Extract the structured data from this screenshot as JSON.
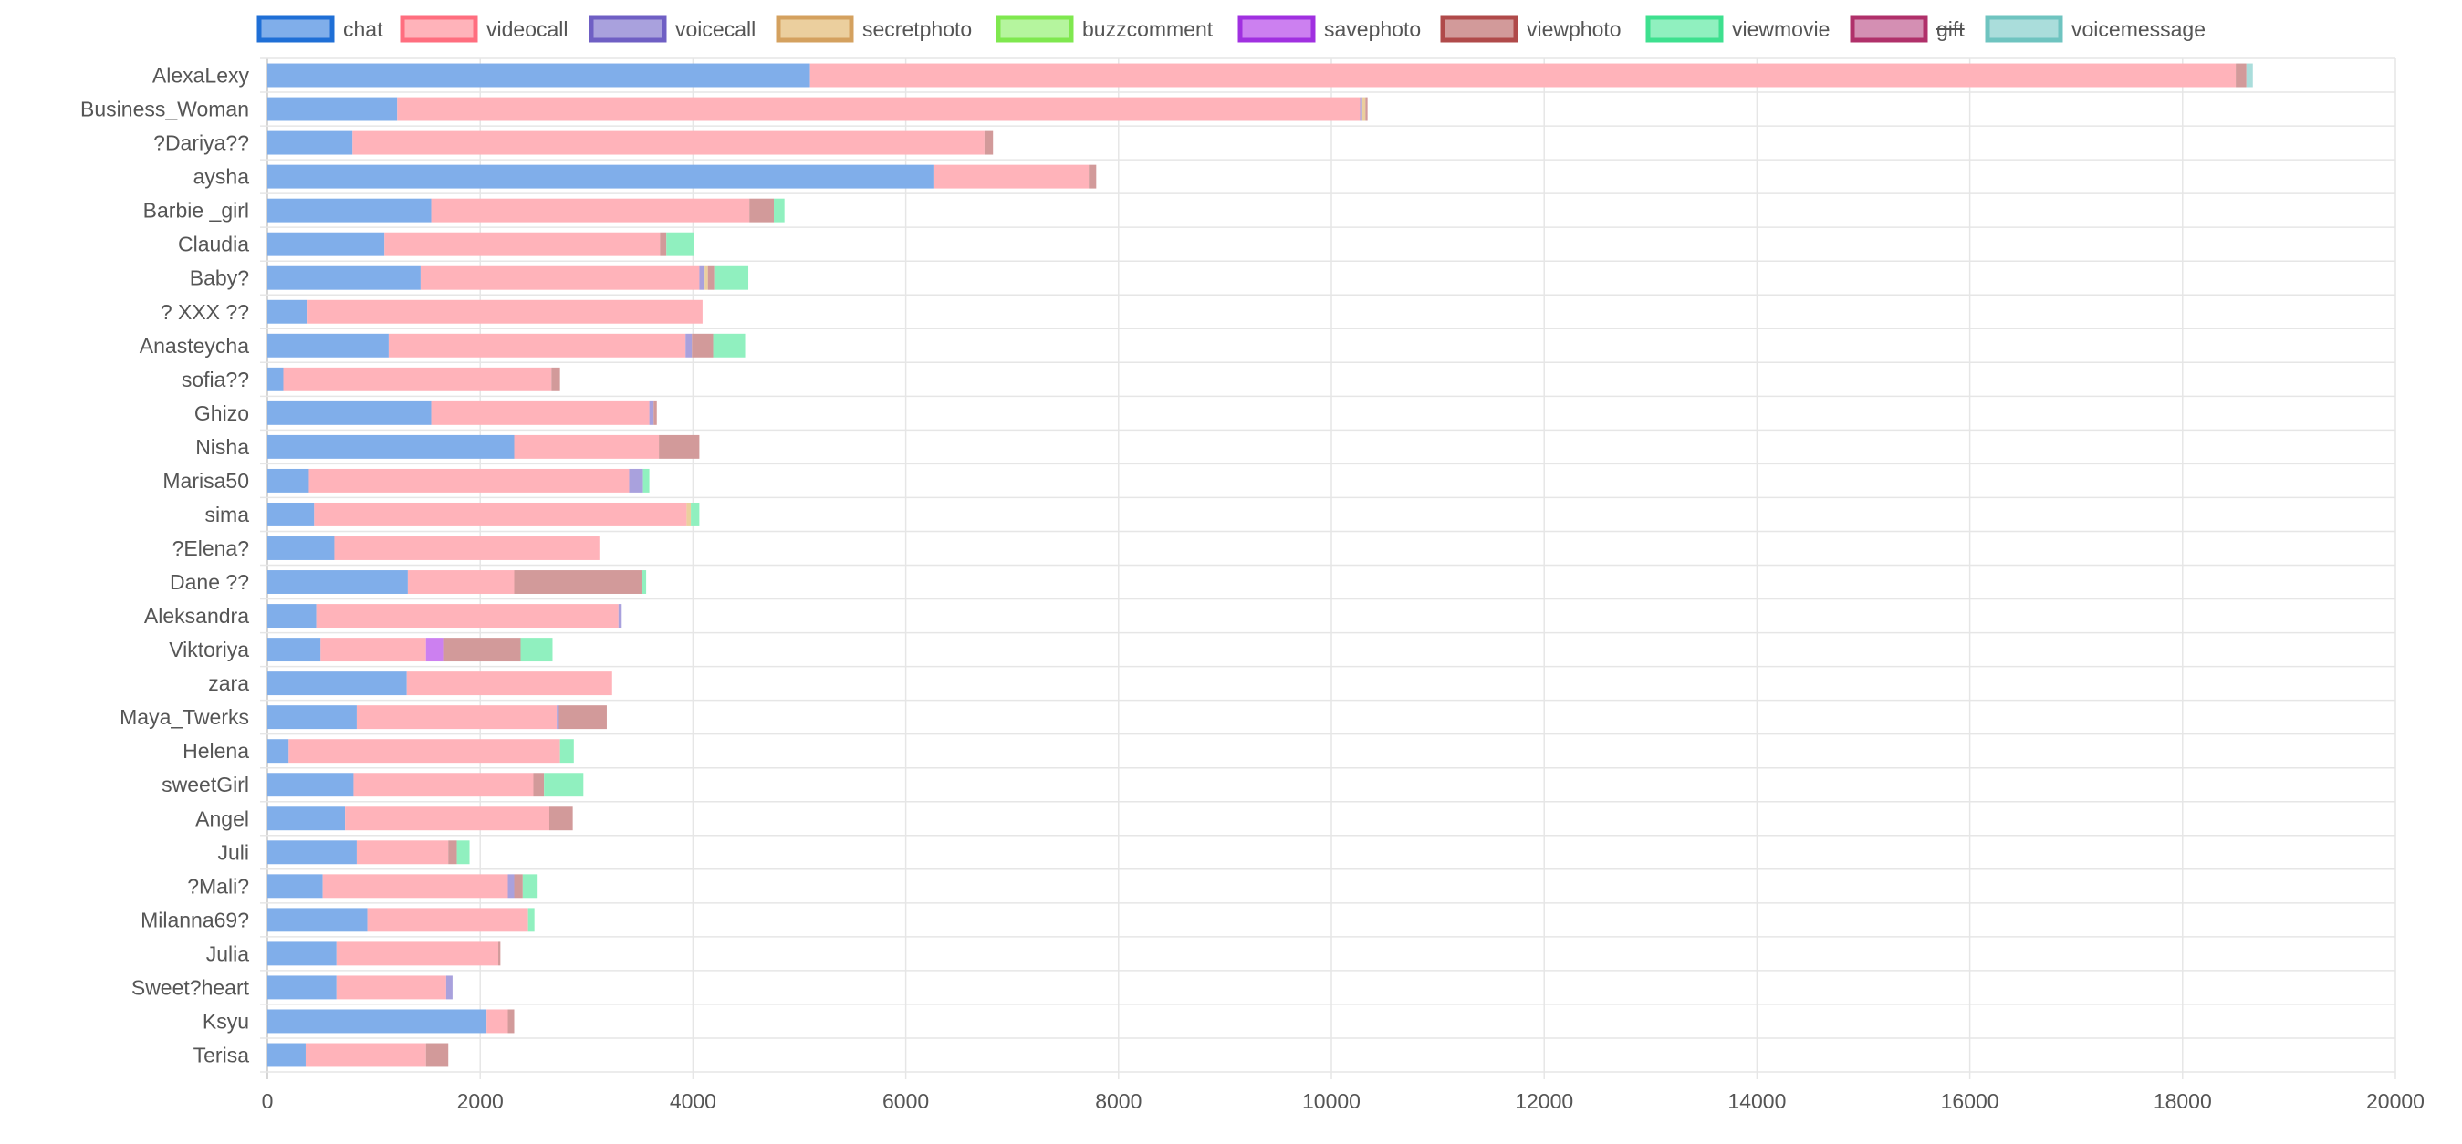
{
  "chart_data": {
    "type": "bar",
    "orientation": "horizontal",
    "stacked": true,
    "title": "",
    "xlabel": "",
    "ylabel": "",
    "xlim": [
      0,
      20000
    ],
    "x_ticks": [
      0,
      2000,
      4000,
      6000,
      8000,
      10000,
      12000,
      14000,
      16000,
      18000,
      20000
    ],
    "grid": true,
    "legend_position": "top",
    "categories": [
      "AlexaLexy",
      "Business_Woman",
      "?Dariya??",
      "aysha",
      "Barbie _girl",
      "Claudia",
      "Baby?",
      "? XXX ??",
      "Anasteycha",
      "sofia??",
      "Ghizo",
      "Nisha",
      "Marisa50",
      "sima",
      "?Elena?",
      "Dane ??",
      "Aleksandra",
      "Viktoriya",
      "zara",
      "Maya_Twerks",
      "Helena",
      "sweetGirl",
      "Angel",
      "Juli",
      "?Mali?",
      "Milanna69?",
      "Julia",
      "Sweet?heart",
      "Ksyu",
      "Terisa"
    ],
    "series": [
      {
        "name": "chat",
        "border": "#1f6fd6",
        "fill": "#80aeea",
        "hidden": false,
        "values": [
          5100,
          1220,
          800,
          6260,
          1540,
          1100,
          1440,
          370,
          1140,
          150,
          1540,
          2320,
          390,
          440,
          630,
          1320,
          460,
          500,
          1310,
          840,
          200,
          810,
          730,
          840,
          520,
          940,
          650,
          650,
          2060,
          360
        ]
      },
      {
        "name": "videocall",
        "border": "#ff6e7f",
        "fill": "#ffb3ba",
        "hidden": false,
        "values": [
          13400,
          9050,
          5940,
          1460,
          2990,
          2590,
          2620,
          3720,
          2790,
          2520,
          2050,
          1360,
          3010,
          3500,
          2490,
          1000,
          2840,
          990,
          1930,
          1880,
          2550,
          1690,
          1920,
          860,
          1740,
          1510,
          1520,
          1030,
          200,
          1130
        ]
      },
      {
        "name": "voicecall",
        "border": "#6f5fc4",
        "fill": "#a9a1dd",
        "hidden": false,
        "values": [
          0,
          20,
          0,
          0,
          0,
          0,
          50,
          0,
          60,
          0,
          40,
          0,
          130,
          0,
          0,
          0,
          30,
          0,
          0,
          20,
          0,
          0,
          0,
          0,
          60,
          0,
          0,
          60,
          0,
          0
        ]
      },
      {
        "name": "secretphoto",
        "border": "#d4a15f",
        "fill": "#ebcf9e",
        "hidden": false,
        "values": [
          0,
          30,
          0,
          0,
          0,
          0,
          30,
          0,
          0,
          0,
          0,
          0,
          0,
          40,
          0,
          0,
          0,
          0,
          0,
          0,
          0,
          0,
          0,
          0,
          0,
          0,
          0,
          0,
          0,
          0
        ]
      },
      {
        "name": "buzzcomment",
        "border": "#7fe84f",
        "fill": "#b5f59e",
        "hidden": false,
        "values": [
          0,
          0,
          0,
          0,
          0,
          0,
          0,
          0,
          0,
          0,
          0,
          0,
          0,
          0,
          0,
          0,
          0,
          0,
          0,
          0,
          0,
          0,
          0,
          0,
          0,
          0,
          0,
          0,
          0,
          0
        ]
      },
      {
        "name": "savephoto",
        "border": "#a030e0",
        "fill": "#cc80f0",
        "hidden": false,
        "values": [
          0,
          0,
          0,
          0,
          0,
          0,
          0,
          0,
          0,
          0,
          0,
          0,
          0,
          0,
          0,
          0,
          0,
          170,
          0,
          0,
          0,
          0,
          0,
          0,
          0,
          0,
          0,
          0,
          0,
          0
        ]
      },
      {
        "name": "viewphoto",
        "border": "#b04a4a",
        "fill": "#d29a9a",
        "hidden": false,
        "values": [
          100,
          20,
          80,
          70,
          230,
          60,
          60,
          0,
          200,
          80,
          30,
          380,
          0,
          0,
          0,
          1200,
          0,
          720,
          0,
          450,
          0,
          100,
          220,
          80,
          80,
          0,
          20,
          0,
          60,
          210
        ]
      },
      {
        "name": "viewmovie",
        "border": "#3ee08f",
        "fill": "#90f0bf",
        "hidden": false,
        "values": [
          0,
          0,
          0,
          0,
          100,
          260,
          320,
          0,
          300,
          0,
          0,
          0,
          60,
          80,
          0,
          40,
          0,
          300,
          0,
          0,
          130,
          370,
          0,
          120,
          140,
          60,
          0,
          0,
          0,
          0
        ]
      },
      {
        "name": "gift",
        "border": "#b0306a",
        "fill": "#d48fb3",
        "hidden": true,
        "values": [
          0,
          0,
          0,
          0,
          0,
          0,
          0,
          0,
          0,
          0,
          0,
          0,
          0,
          0,
          0,
          0,
          0,
          0,
          0,
          0,
          0,
          0,
          0,
          0,
          0,
          0,
          0,
          0,
          0,
          0
        ]
      },
      {
        "name": "voicemessage",
        "border": "#6fc4c0",
        "fill": "#aadddb",
        "hidden": false,
        "values": [
          60,
          0,
          0,
          0,
          0,
          0,
          0,
          0,
          0,
          0,
          0,
          0,
          0,
          0,
          0,
          0,
          0,
          0,
          0,
          0,
          0,
          0,
          0,
          0,
          0,
          0,
          0,
          0,
          0,
          0
        ]
      }
    ]
  }
}
